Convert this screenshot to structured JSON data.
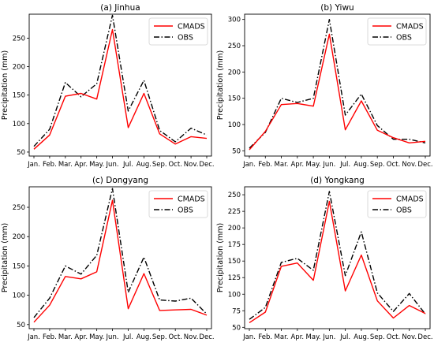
{
  "colors": {
    "cmads": "#ff0000",
    "obs": "#000000"
  },
  "chart_data": [
    {
      "type": "line",
      "title": "(a) Jinhua",
      "xlabel": "",
      "ylabel": "Precipitation (mm)",
      "categories": [
        "Jan.",
        "Feb.",
        "Mar.",
        "Apr.",
        "May.",
        "Jun.",
        "Jul.",
        "Aug.",
        "Sep.",
        "Oct.",
        "Nov.",
        "Dec."
      ],
      "ylim": [
        43,
        292
      ],
      "yticks": [
        50,
        100,
        150,
        200,
        250
      ],
      "legend": "top-right",
      "series": [
        {
          "name": "CMADS",
          "style": "solid",
          "values": [
            55,
            80,
            148,
            153,
            143,
            265,
            93,
            153,
            82,
            64,
            77,
            74
          ]
        },
        {
          "name": "OBS",
          "style": "dashdot",
          "values": [
            60,
            90,
            172,
            147,
            170,
            290,
            122,
            176,
            88,
            68,
            92,
            80
          ]
        }
      ]
    },
    {
      "type": "line",
      "title": "(b) Yiwu",
      "xlabel": "",
      "ylabel": "Precipitation (mm)",
      "categories": [
        "Jan.",
        "Feb.",
        "Mar.",
        "Apr.",
        "May.",
        "Jun.",
        "Jul.",
        "Aug.",
        "Sep.",
        "Oct.",
        "Nov.",
        "Dec."
      ],
      "ylim": [
        40,
        310
      ],
      "yticks": [
        50,
        100,
        150,
        200,
        250,
        300
      ],
      "legend": "top-right",
      "series": [
        {
          "name": "CMADS",
          "style": "solid",
          "values": [
            52,
            87,
            138,
            140,
            135,
            272,
            90,
            145,
            89,
            75,
            65,
            68
          ]
        },
        {
          "name": "OBS",
          "style": "dashdot",
          "values": [
            55,
            85,
            150,
            142,
            150,
            300,
            118,
            158,
            98,
            72,
            72,
            65
          ]
        }
      ]
    },
    {
      "type": "line",
      "title": "(c) Dongyang",
      "xlabel": "",
      "ylabel": "Precipitation (mm)",
      "categories": [
        "Jan.",
        "Feb.",
        "Mar.",
        "Apr.",
        "May.",
        "Jun.",
        "Jul.",
        "Aug.",
        "Sep.",
        "Oct.",
        "Nov.",
        "Dec."
      ],
      "ylim": [
        43,
        285
      ],
      "yticks": [
        50,
        100,
        150,
        200,
        250
      ],
      "legend": "top-right",
      "series": [
        {
          "name": "CMADS",
          "style": "solid",
          "values": [
            54,
            83,
            132,
            128,
            140,
            262,
            77,
            137,
            74,
            75,
            76,
            66
          ]
        },
        {
          "name": "OBS",
          "style": "dashdot",
          "values": [
            62,
            95,
            150,
            136,
            168,
            282,
            105,
            165,
            92,
            90,
            95,
            68
          ]
        }
      ]
    },
    {
      "type": "line",
      "title": "(d) Yongkang",
      "xlabel": "",
      "ylabel": "Precipitation (mm)",
      "categories": [
        "Jan.",
        "Feb.",
        "Mar.",
        "Apr.",
        "May.",
        "Jun.",
        "Jul.",
        "Aug.",
        "Sep.",
        "Oct.",
        "Nov.",
        "Dec."
      ],
      "ylim": [
        48,
        262
      ],
      "yticks": [
        50,
        75,
        100,
        125,
        150,
        175,
        200,
        225,
        250
      ],
      "legend": "top-right",
      "series": [
        {
          "name": "CMADS",
          "style": "solid",
          "values": [
            57,
            73,
            142,
            147,
            121,
            240,
            105,
            159,
            90,
            64,
            83,
            71
          ]
        },
        {
          "name": "OBS",
          "style": "dashdot",
          "values": [
            62,
            80,
            148,
            154,
            136,
            255,
            128,
            194,
            102,
            74,
            101,
            70
          ]
        }
      ]
    }
  ]
}
